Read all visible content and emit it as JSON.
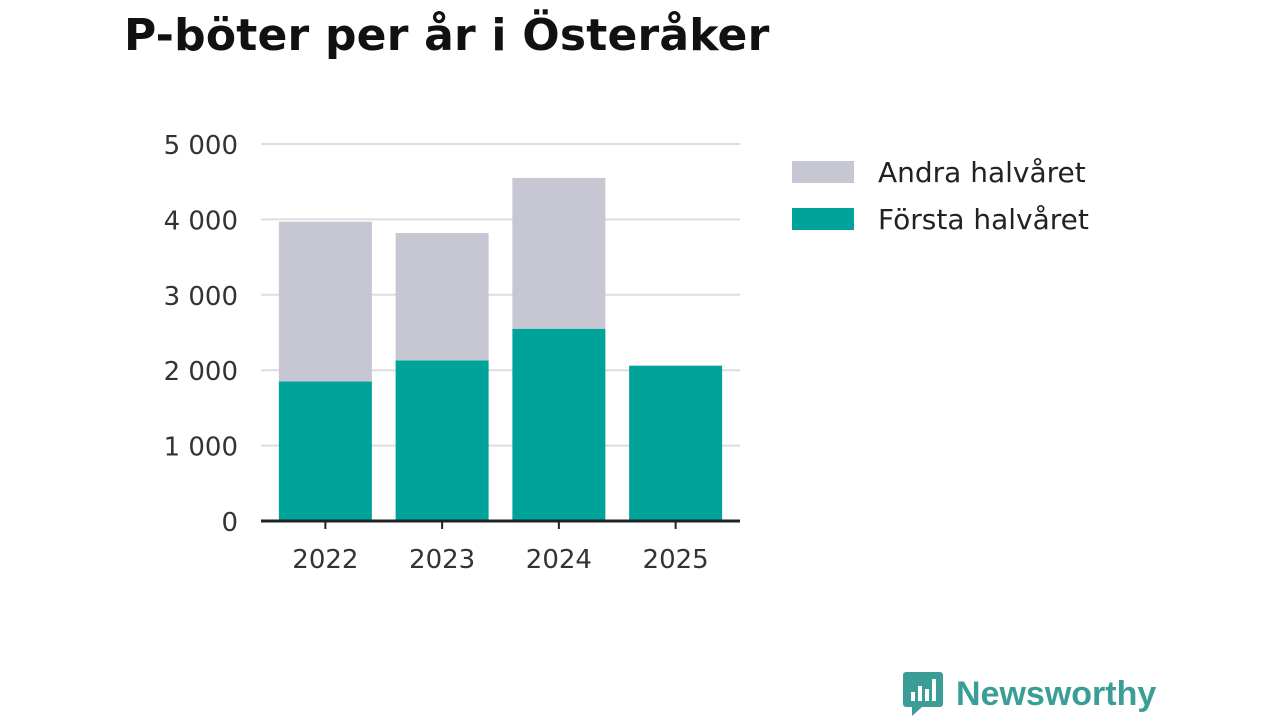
{
  "chart_data": {
    "type": "bar",
    "stacked": true,
    "title": "P-böter per år i Österåker",
    "categories": [
      "2022",
      "2023",
      "2024",
      "2025"
    ],
    "series": [
      {
        "name": "Första halvåret",
        "values": [
          1850,
          2130,
          2550,
          2060
        ],
        "color": "#00a39a"
      },
      {
        "name": "Andra halvåret",
        "values": [
          2120,
          1690,
          2000,
          0
        ],
        "color": "#c7c6d3"
      }
    ],
    "ylim": [
      0,
      5000
    ],
    "yticks": [
      0,
      1000,
      2000,
      3000,
      4000,
      5000
    ],
    "ytick_labels": [
      "0",
      "1 000",
      "2 000",
      "3 000",
      "4 000",
      "5 000"
    ],
    "grid": true,
    "legend_position": "right"
  },
  "legend": [
    {
      "label": "Andra halvåret",
      "color": "#c7c6d3"
    },
    {
      "label": "Första halvåret",
      "color": "#00a39a"
    }
  ],
  "brand": {
    "name": "Newsworthy",
    "color": "#3a9e96",
    "icon": "newsworthy-logo-icon"
  }
}
